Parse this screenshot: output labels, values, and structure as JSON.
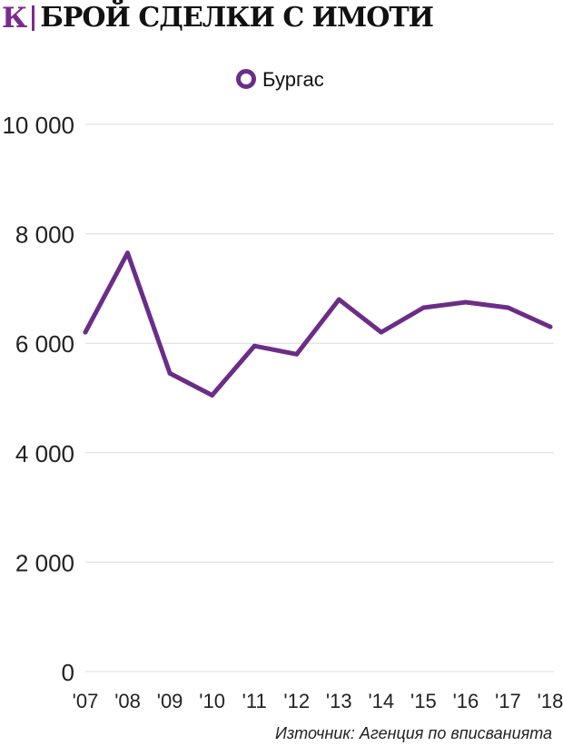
{
  "header": {
    "logo": "К",
    "title": "БРОЙ СДЕЛКИ С ИМОТИ"
  },
  "source": "Източник: Агенция по вписванията",
  "colors": {
    "accent": "#7a2b8f",
    "line": "#6b2d87",
    "grid": "#dcdcdc",
    "tick_text": "#222222"
  },
  "chart_data": {
    "type": "line",
    "title": "БРОЙ СДЕЛКИ С ИМОТИ",
    "xlabel": "",
    "ylabel": "",
    "categories": [
      "'07",
      "'08",
      "'09",
      "'10",
      "'11",
      "'12",
      "'13",
      "'14",
      "'15",
      "'16",
      "'17",
      "'18"
    ],
    "series": [
      {
        "name": "Бургас",
        "values": [
          6200,
          7650,
          5450,
          5050,
          5950,
          5800,
          6800,
          6200,
          6650,
          6750,
          6650,
          6300
        ]
      }
    ],
    "ylim": [
      0,
      10000
    ],
    "yticks": [
      0,
      2000,
      4000,
      6000,
      8000,
      10000
    ],
    "ytick_labels": [
      "0",
      "2 000",
      "4 000",
      "6 000",
      "8 000",
      "10 000"
    ],
    "grid": true,
    "legend_position": "top-center"
  }
}
